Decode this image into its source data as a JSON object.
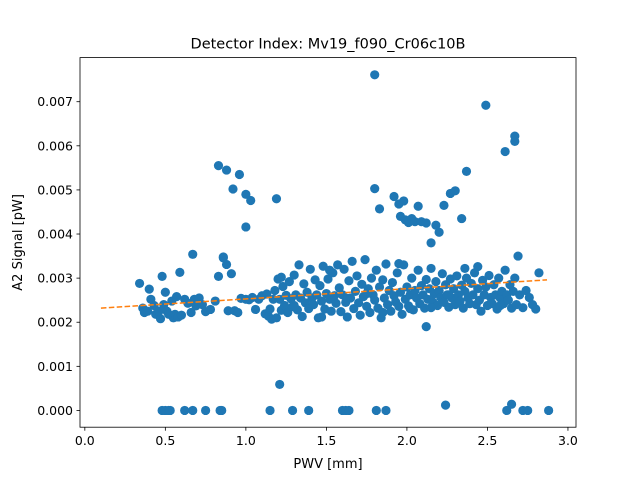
{
  "chart_data": {
    "type": "scatter",
    "title": "Detector Index: Mv19_f090_Cr06c10B",
    "xlabel": "PWV [mm]",
    "ylabel": "A2 Signal [pW]",
    "xlim": [
      -0.03,
      3.05
    ],
    "ylim": [
      -0.00038,
      0.008
    ],
    "xticks": [
      "0.0",
      "0.5",
      "1.0",
      "1.5",
      "2.0",
      "2.5",
      "3.0"
    ],
    "xtick_values": [
      0.0,
      0.5,
      1.0,
      1.5,
      2.0,
      2.5,
      3.0
    ],
    "yticks": [
      "0.000",
      "0.001",
      "0.002",
      "0.003",
      "0.004",
      "0.005",
      "0.006",
      "0.007"
    ],
    "ytick_values": [
      0.0,
      0.001,
      0.002,
      0.003,
      0.004,
      0.005,
      0.006,
      0.007
    ],
    "colors": {
      "points": "#1f77b4",
      "fit": "#ff7f0e"
    },
    "series": [
      {
        "name": "A2 signal",
        "kind": "points",
        "points": [
          [
            0.34,
            0.00288
          ],
          [
            0.36,
            0.00232
          ],
          [
            0.37,
            0.00222
          ],
          [
            0.39,
            0.00225
          ],
          [
            0.4,
            0.00275
          ],
          [
            0.41,
            0.00252
          ],
          [
            0.43,
            0.00238
          ],
          [
            0.44,
            0.00218
          ],
          [
            0.46,
            0.00225
          ],
          [
            0.47,
            0.00208
          ],
          [
            0.48,
            0.00304
          ],
          [
            0.49,
            0.0024
          ],
          [
            0.5,
            0.00268
          ],
          [
            0.51,
            0.00225
          ],
          [
            0.52,
            0.00218
          ],
          [
            0.54,
            0.00248
          ],
          [
            0.55,
            0.0021
          ],
          [
            0.56,
            0.00218
          ],
          [
            0.57,
            0.00258
          ],
          [
            0.58,
            0.00212
          ],
          [
            0.59,
            0.00313
          ],
          [
            0.6,
            0.00216
          ],
          [
            0.62,
            0.00252
          ],
          [
            0.64,
            0.00243
          ],
          [
            0.66,
            0.00222
          ],
          [
            0.67,
            0.00354
          ],
          [
            0.68,
            0.00252
          ],
          [
            0.69,
            0.00237
          ],
          [
            0.71,
            0.00255
          ],
          [
            0.73,
            0.0024
          ],
          [
            0.75,
            0.00224
          ],
          [
            0.78,
            0.00229
          ],
          [
            0.81,
            0.00248
          ],
          [
            0.83,
            0.00304
          ],
          [
            0.86,
            0.00346
          ],
          [
            0.88,
            0.00331
          ],
          [
            0.89,
            0.00226
          ],
          [
            0.91,
            0.0031
          ],
          [
            0.93,
            0.00226
          ],
          [
            0.95,
            0.00222
          ],
          [
            0.97,
            0.00254
          ],
          [
            1.0,
            0.00252
          ],
          [
            1.02,
            0.00251
          ],
          [
            1.04,
            0.00256
          ],
          [
            1.06,
            0.00229
          ],
          [
            1.08,
            0.00252
          ],
          [
            1.1,
            0.0026
          ],
          [
            1.12,
            0.00219
          ],
          [
            1.13,
            0.00264
          ],
          [
            1.14,
            0.00214
          ],
          [
            1.15,
            0.0023
          ],
          [
            1.16,
            0.00207
          ],
          [
            1.17,
            0.00252
          ],
          [
            1.18,
            0.00272
          ],
          [
            1.19,
            0.0021
          ],
          [
            1.2,
            0.00298
          ],
          [
            1.21,
            0.00252
          ],
          [
            1.22,
            0.00227
          ],
          [
            1.23,
            0.00281
          ],
          [
            1.24,
            0.00238
          ],
          [
            1.25,
            0.00261
          ],
          [
            1.26,
            0.00222
          ],
          [
            1.27,
            0.00292
          ],
          [
            1.28,
            0.00253
          ],
          [
            1.29,
            0.00235
          ],
          [
            1.3,
            0.00307
          ],
          [
            1.31,
            0.00262
          ],
          [
            1.32,
            0.00228
          ],
          [
            1.33,
            0.0033
          ],
          [
            1.34,
            0.00255
          ],
          [
            1.35,
            0.00213
          ],
          [
            1.36,
            0.00287
          ],
          [
            1.37,
            0.00244
          ],
          [
            1.38,
            0.00268
          ],
          [
            1.39,
            0.00231
          ],
          [
            1.4,
            0.0032
          ],
          [
            1.41,
            0.00255
          ],
          [
            1.42,
            0.0024
          ],
          [
            1.43,
            0.00296
          ],
          [
            1.44,
            0.00262
          ],
          [
            1.45,
            0.0021
          ],
          [
            1.46,
            0.00283
          ],
          [
            1.47,
            0.00248
          ],
          [
            1.48,
            0.00327
          ],
          [
            1.49,
            0.0023
          ],
          [
            1.5,
            0.00265
          ],
          [
            1.51,
            0.00298
          ],
          [
            1.52,
            0.00252
          ],
          [
            1.53,
            0.00225
          ],
          [
            1.54,
            0.00312
          ],
          [
            1.55,
            0.0026
          ],
          [
            1.56,
            0.00243
          ],
          [
            1.57,
            0.0033
          ],
          [
            1.58,
            0.00278
          ],
          [
            1.59,
            0.00224
          ],
          [
            1.6,
            0.00262
          ],
          [
            1.61,
            0.0032
          ],
          [
            1.62,
            0.00245
          ],
          [
            1.63,
            0.00212
          ],
          [
            1.64,
            0.00294
          ],
          [
            1.65,
            0.00255
          ],
          [
            1.66,
            0.00338
          ],
          [
            1.67,
            0.00231
          ],
          [
            1.68,
            0.0027
          ],
          [
            1.69,
            0.00305
          ],
          [
            1.7,
            0.00244
          ],
          [
            1.71,
            0.00216
          ],
          [
            1.72,
            0.00286
          ],
          [
            1.73,
            0.00258
          ],
          [
            1.74,
            0.00342
          ],
          [
            1.75,
            0.00236
          ],
          [
            1.76,
            0.00276
          ],
          [
            1.77,
            0.00222
          ],
          [
            1.78,
            0.003
          ],
          [
            1.79,
            0.00262
          ],
          [
            1.8,
            0.0025
          ],
          [
            1.81,
            0.00318
          ],
          [
            1.82,
            0.00232
          ],
          [
            1.83,
            0.0028
          ],
          [
            1.84,
            0.0021
          ],
          [
            1.85,
            0.00296
          ],
          [
            1.86,
            0.00255
          ],
          [
            1.87,
            0.00332
          ],
          [
            1.88,
            0.0024
          ],
          [
            1.89,
            0.00272
          ],
          [
            1.9,
            0.00225
          ],
          [
            1.91,
            0.0029
          ],
          [
            1.92,
            0.0026
          ],
          [
            1.93,
            0.00246
          ],
          [
            1.94,
            0.00312
          ],
          [
            1.95,
            0.00236
          ],
          [
            1.96,
            0.00268
          ],
          [
            1.97,
            0.00218
          ],
          [
            1.98,
            0.0033
          ],
          [
            1.99,
            0.00252
          ],
          [
            2.0,
            0.0028
          ],
          [
            2.01,
            0.00237
          ],
          [
            2.02,
            0.00262
          ],
          [
            2.03,
            0.003
          ],
          [
            2.04,
            0.00228
          ],
          [
            2.05,
            0.00272
          ],
          [
            2.06,
            0.00255
          ],
          [
            2.07,
            0.00318
          ],
          [
            2.08,
            0.00242
          ],
          [
            2.09,
            0.00283
          ],
          [
            2.1,
            0.00262
          ],
          [
            2.11,
            0.00232
          ],
          [
            2.12,
            0.00297
          ],
          [
            2.13,
            0.00252
          ],
          [
            2.14,
            0.00276
          ],
          [
            2.15,
            0.00322
          ],
          [
            2.16,
            0.00246
          ],
          [
            2.17,
            0.00265
          ],
          [
            2.18,
            0.00292
          ],
          [
            2.19,
            0.00238
          ],
          [
            2.2,
            0.00272
          ],
          [
            2.21,
            0.00256
          ],
          [
            2.22,
            0.0031
          ],
          [
            2.23,
            0.00245
          ],
          [
            2.24,
            0.00285
          ],
          [
            2.25,
            0.00262
          ],
          [
            2.26,
            0.00234
          ],
          [
            2.27,
            0.00298
          ],
          [
            2.28,
            0.00255
          ],
          [
            2.29,
            0.00276
          ],
          [
            2.3,
            0.0024
          ],
          [
            2.31,
            0.00305
          ],
          [
            2.32,
            0.00262
          ],
          [
            2.33,
            0.00248
          ],
          [
            2.34,
            0.00284
          ],
          [
            2.35,
            0.00232
          ],
          [
            2.36,
            0.0027
          ],
          [
            2.37,
            0.003
          ],
          [
            2.38,
            0.00255
          ],
          [
            2.39,
            0.00242
          ],
          [
            2.4,
            0.00288
          ],
          [
            2.41,
            0.00262
          ],
          [
            2.42,
            0.00312
          ],
          [
            2.43,
            0.0024
          ],
          [
            2.44,
            0.00276
          ],
          [
            2.45,
            0.0025
          ],
          [
            2.46,
            0.00225
          ],
          [
            2.47,
            0.00295
          ],
          [
            2.48,
            0.00262
          ],
          [
            2.49,
            0.0028
          ],
          [
            2.5,
            0.00238
          ],
          [
            2.51,
            0.00306
          ],
          [
            2.52,
            0.00256
          ],
          [
            2.53,
            0.00242
          ],
          [
            2.54,
            0.00285
          ],
          [
            2.55,
            0.00262
          ],
          [
            2.56,
            0.0023
          ],
          [
            2.57,
            0.003
          ],
          [
            2.58,
            0.00255
          ],
          [
            2.59,
            0.0027
          ],
          [
            2.6,
            0.00242
          ],
          [
            2.61,
            0.00318
          ],
          [
            2.62,
            0.00262
          ],
          [
            2.63,
            0.0025
          ],
          [
            2.64,
            0.00285
          ],
          [
            2.65,
            0.00232
          ],
          [
            2.66,
            0.0027
          ],
          [
            2.67,
            0.003
          ],
          [
            2.68,
            0.0024
          ],
          [
            2.69,
            0.0035
          ],
          [
            2.7,
            0.00262
          ],
          [
            2.72,
            0.00233
          ],
          [
            2.74,
            0.00272
          ],
          [
            2.76,
            0.00256
          ],
          [
            2.78,
            0.0024
          ],
          [
            2.8,
            0.0023
          ],
          [
            2.82,
            0.00312
          ],
          [
            1.3,
            0.00238
          ],
          [
            1.52,
            0.00318
          ],
          [
            1.75,
            0.00265
          ],
          [
            1.95,
            0.00333
          ],
          [
            2.15,
            0.00233
          ],
          [
            2.36,
            0.00322
          ],
          [
            2.58,
            0.00238
          ],
          [
            1.22,
            0.00302
          ],
          [
            1.63,
            0.00254
          ],
          [
            2.02,
            0.00231
          ],
          [
            2.44,
            0.00326
          ],
          [
            2.12,
            0.0019
          ],
          [
            1.47,
            0.00212
          ],
          [
            1.85,
            0.00222
          ],
          [
            2.26,
            0.00262
          ],
          [
            0.83,
            0.00555
          ],
          [
            0.88,
            0.00545
          ],
          [
            0.92,
            0.00502
          ],
          [
            0.96,
            0.00535
          ],
          [
            1.0,
            0.0049
          ],
          [
            1.03,
            0.00476
          ],
          [
            1.19,
            0.0048
          ],
          [
            1.0,
            0.00416
          ],
          [
            0.86,
            0.00348
          ],
          [
            1.8,
            0.00761
          ],
          [
            1.8,
            0.00503
          ],
          [
            1.83,
            0.00457
          ],
          [
            1.92,
            0.00485
          ],
          [
            1.95,
            0.00468
          ],
          [
            1.96,
            0.0044
          ],
          [
            1.98,
            0.00475
          ],
          [
            1.99,
            0.00432
          ],
          [
            2.01,
            0.00426
          ],
          [
            2.03,
            0.00435
          ],
          [
            2.05,
            0.00428
          ],
          [
            2.07,
            0.00463
          ],
          [
            2.09,
            0.00428
          ],
          [
            2.12,
            0.00425
          ],
          [
            2.15,
            0.0038
          ],
          [
            2.18,
            0.0042
          ],
          [
            2.2,
            0.00404
          ],
          [
            2.23,
            0.00465
          ],
          [
            2.27,
            0.00492
          ],
          [
            2.3,
            0.00498
          ],
          [
            2.34,
            0.00435
          ],
          [
            2.37,
            0.00542
          ],
          [
            2.49,
            0.00692
          ],
          [
            2.61,
            0.00587
          ],
          [
            2.67,
            0.00622
          ],
          [
            2.67,
            0.0061
          ],
          [
            0.48,
            0.0
          ],
          [
            0.5,
            0.0
          ],
          [
            0.52,
            0.0
          ],
          [
            0.53,
            0.0
          ],
          [
            0.62,
            0.0
          ],
          [
            0.67,
            0.0
          ],
          [
            0.75,
            0.0
          ],
          [
            0.84,
            0.0
          ],
          [
            0.85,
            0.0
          ],
          [
            1.15,
            0.0
          ],
          [
            1.29,
            0.0
          ],
          [
            1.39,
            0.0
          ],
          [
            1.6,
            0.0
          ],
          [
            1.62,
            0.0
          ],
          [
            1.64,
            0.0
          ],
          [
            1.81,
            0.0
          ],
          [
            1.87,
            0.0
          ],
          [
            2.24,
            0.00012
          ],
          [
            2.62,
            0.0
          ],
          [
            2.65,
            0.00014
          ],
          [
            2.72,
            0.0
          ],
          [
            2.75,
            0.0
          ],
          [
            2.88,
            0.0
          ],
          [
            1.21,
            0.00059
          ]
        ]
      },
      {
        "name": "linear fit",
        "kind": "dashed-line",
        "x": [
          0.1,
          2.87
        ],
        "y": [
          0.00232,
          0.00296
        ]
      }
    ]
  }
}
